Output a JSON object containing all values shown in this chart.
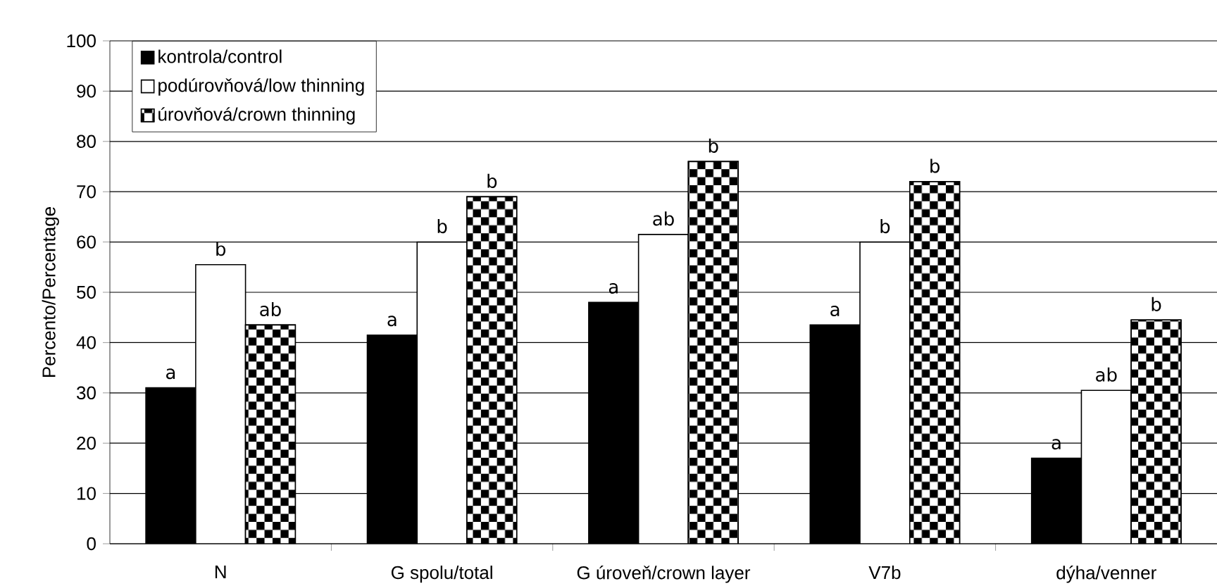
{
  "chart_data": {
    "type": "bar",
    "ylabel": "Percento/Percentage",
    "categories": [
      "N",
      "G spolu/total",
      "G úroveň/crown layer",
      "V7b",
      "dýha/venner"
    ],
    "series": [
      {
        "name": "kontrola/control",
        "color": "#000000",
        "values": [
          31,
          41.5,
          48,
          43.5,
          17
        ],
        "value_labels": [
          "a",
          "a",
          "a",
          "a",
          "a"
        ]
      },
      {
        "name": "podúrovňová/low thinning",
        "color": "#ffffff",
        "values": [
          55.5,
          60,
          61.5,
          60,
          30.5
        ],
        "value_labels": [
          "b",
          "b",
          "ab",
          "b",
          "ab"
        ]
      },
      {
        "name": "úrovňová/crown thinning",
        "color": "#000000",
        "values": [
          43.5,
          69,
          76,
          72,
          44.5
        ],
        "value_labels": [
          "ab",
          "b",
          "b",
          "b",
          "b"
        ]
      }
    ],
    "ylim": [
      0,
      100
    ],
    "yticks": [
      0,
      10,
      20,
      30,
      40,
      50,
      60,
      70,
      80,
      90,
      100
    ],
    "grid": "y",
    "legend": "top left"
  }
}
